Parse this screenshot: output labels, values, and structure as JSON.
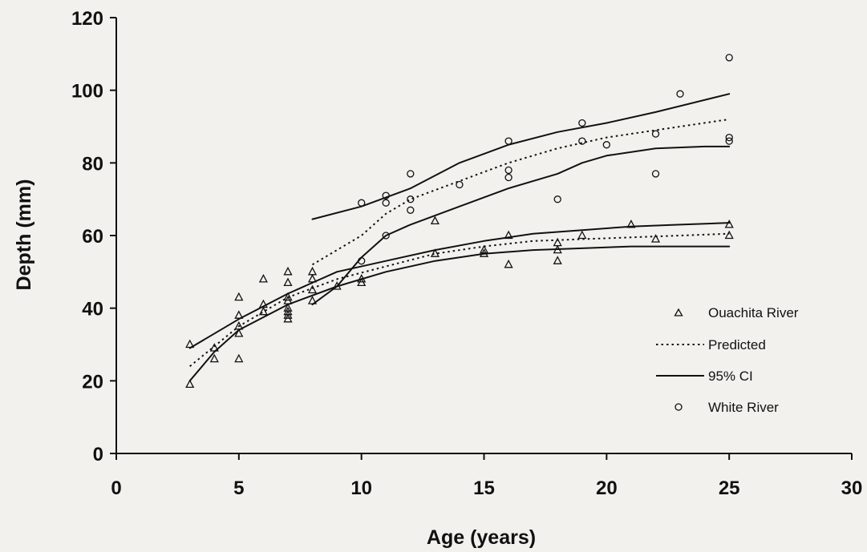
{
  "chart_data": {
    "type": "scatter",
    "title": "",
    "xlabel": "Age (years)",
    "ylabel": "Depth (mm)",
    "xlim": [
      0,
      30
    ],
    "ylim": [
      0,
      120
    ],
    "xticks": [
      0,
      5,
      10,
      15,
      20,
      25,
      30
    ],
    "yticks": [
      0,
      20,
      40,
      60,
      80,
      100,
      120
    ],
    "grid": false,
    "legend": {
      "position": "right",
      "entries": [
        {
          "label": "Ouachita River",
          "marker": "triangle"
        },
        {
          "label": "Predicted",
          "style": "dotted"
        },
        {
          "label": "95% CI",
          "style": "solid"
        },
        {
          "label": "White River",
          "marker": "circle"
        }
      ]
    },
    "series": [
      {
        "name": "Ouachita River",
        "kind": "points",
        "marker": "triangle",
        "points": [
          [
            3,
            30
          ],
          [
            3,
            19
          ],
          [
            4,
            29
          ],
          [
            4,
            26
          ],
          [
            5,
            43
          ],
          [
            5,
            38
          ],
          [
            5,
            35
          ],
          [
            5,
            33
          ],
          [
            5,
            26
          ],
          [
            6,
            48
          ],
          [
            6,
            41
          ],
          [
            6,
            39
          ],
          [
            7,
            50
          ],
          [
            7,
            47
          ],
          [
            7,
            43
          ],
          [
            7,
            42
          ],
          [
            7,
            40
          ],
          [
            7,
            39
          ],
          [
            7,
            38
          ],
          [
            7,
            37
          ],
          [
            8,
            50
          ],
          [
            8,
            48
          ],
          [
            8,
            45
          ],
          [
            8,
            42
          ],
          [
            9,
            46
          ],
          [
            10,
            48
          ],
          [
            10,
            47
          ],
          [
            13,
            64
          ],
          [
            13,
            55
          ],
          [
            15,
            56
          ],
          [
            15,
            55
          ],
          [
            16,
            60
          ],
          [
            16,
            52
          ],
          [
            18,
            58
          ],
          [
            18,
            56
          ],
          [
            18,
            53
          ],
          [
            19,
            60
          ],
          [
            21,
            63
          ],
          [
            22,
            59
          ],
          [
            25,
            63
          ],
          [
            25,
            60
          ]
        ]
      },
      {
        "name": "White River",
        "kind": "points",
        "marker": "circle",
        "points": [
          [
            10,
            69
          ],
          [
            10,
            53
          ],
          [
            11,
            71
          ],
          [
            11,
            69
          ],
          [
            11,
            60
          ],
          [
            12,
            77
          ],
          [
            12,
            70
          ],
          [
            12,
            67
          ],
          [
            14,
            74
          ],
          [
            16,
            86
          ],
          [
            16,
            78
          ],
          [
            16,
            76
          ],
          [
            18,
            70
          ],
          [
            19,
            91
          ],
          [
            19,
            86
          ],
          [
            20,
            85
          ],
          [
            22,
            88
          ],
          [
            22,
            77
          ],
          [
            23,
            99
          ],
          [
            25,
            109
          ],
          [
            25,
            87
          ],
          [
            25,
            86
          ]
        ]
      },
      {
        "name": "Predicted",
        "kind": "curve",
        "style": "dotted",
        "points": [
          [
            3,
            24
          ],
          [
            5,
            35
          ],
          [
            7,
            43
          ],
          [
            9,
            48
          ],
          [
            11,
            51.5
          ],
          [
            13,
            55
          ],
          [
            15,
            57
          ],
          [
            17,
            58.5
          ],
          [
            19,
            59
          ],
          [
            21,
            59.5
          ],
          [
            23,
            60
          ],
          [
            25,
            60.5
          ]
        ]
      },
      {
        "name": "95% CI",
        "kind": "curve",
        "style": "solid",
        "points": [
          [
            3,
            29
          ],
          [
            5,
            37
          ],
          [
            7,
            44
          ],
          [
            9,
            50
          ],
          [
            11,
            53
          ],
          [
            13,
            56
          ],
          [
            15,
            58.5
          ],
          [
            17,
            60.5
          ],
          [
            19,
            61.5
          ],
          [
            21,
            62.5
          ],
          [
            23,
            63
          ],
          [
            25,
            63.5
          ]
        ]
      },
      {
        "name": "95% CI",
        "kind": "curve",
        "style": "solid",
        "points": [
          [
            3,
            20
          ],
          [
            4,
            28
          ],
          [
            5,
            34
          ],
          [
            7,
            41
          ],
          [
            9,
            46
          ],
          [
            11,
            50
          ],
          [
            13,
            53
          ],
          [
            15,
            55
          ],
          [
            17,
            56
          ],
          [
            19,
            56.5
          ],
          [
            21,
            57
          ],
          [
            23,
            57
          ],
          [
            25,
            57
          ]
        ]
      },
      {
        "name": "Predicted",
        "kind": "curve",
        "style": "dotted",
        "points": [
          [
            8,
            52
          ],
          [
            10,
            60
          ],
          [
            11,
            66
          ],
          [
            12,
            70
          ],
          [
            14,
            75
          ],
          [
            16,
            80
          ],
          [
            18,
            84
          ],
          [
            20,
            87
          ],
          [
            22,
            89
          ],
          [
            25,
            92
          ]
        ]
      },
      {
        "name": "95% CI",
        "kind": "curve",
        "style": "solid",
        "points": [
          [
            8,
            64.5
          ],
          [
            10,
            68
          ],
          [
            12,
            73
          ],
          [
            14,
            80
          ],
          [
            16,
            85
          ],
          [
            18,
            88.5
          ],
          [
            20,
            91
          ],
          [
            22,
            94
          ],
          [
            25,
            99
          ]
        ]
      },
      {
        "name": "95% CI",
        "kind": "curve",
        "style": "solid",
        "points": [
          [
            8,
            41
          ],
          [
            9,
            46
          ],
          [
            10,
            54
          ],
          [
            11,
            60
          ],
          [
            12,
            63
          ],
          [
            14,
            68
          ],
          [
            16,
            73
          ],
          [
            18,
            77
          ],
          [
            19,
            80
          ],
          [
            20,
            82
          ],
          [
            22,
            84
          ],
          [
            24,
            84.5
          ],
          [
            25,
            84.5
          ]
        ]
      }
    ]
  },
  "colors": {
    "background": "#f2f1ed",
    "ink": "#111111"
  }
}
